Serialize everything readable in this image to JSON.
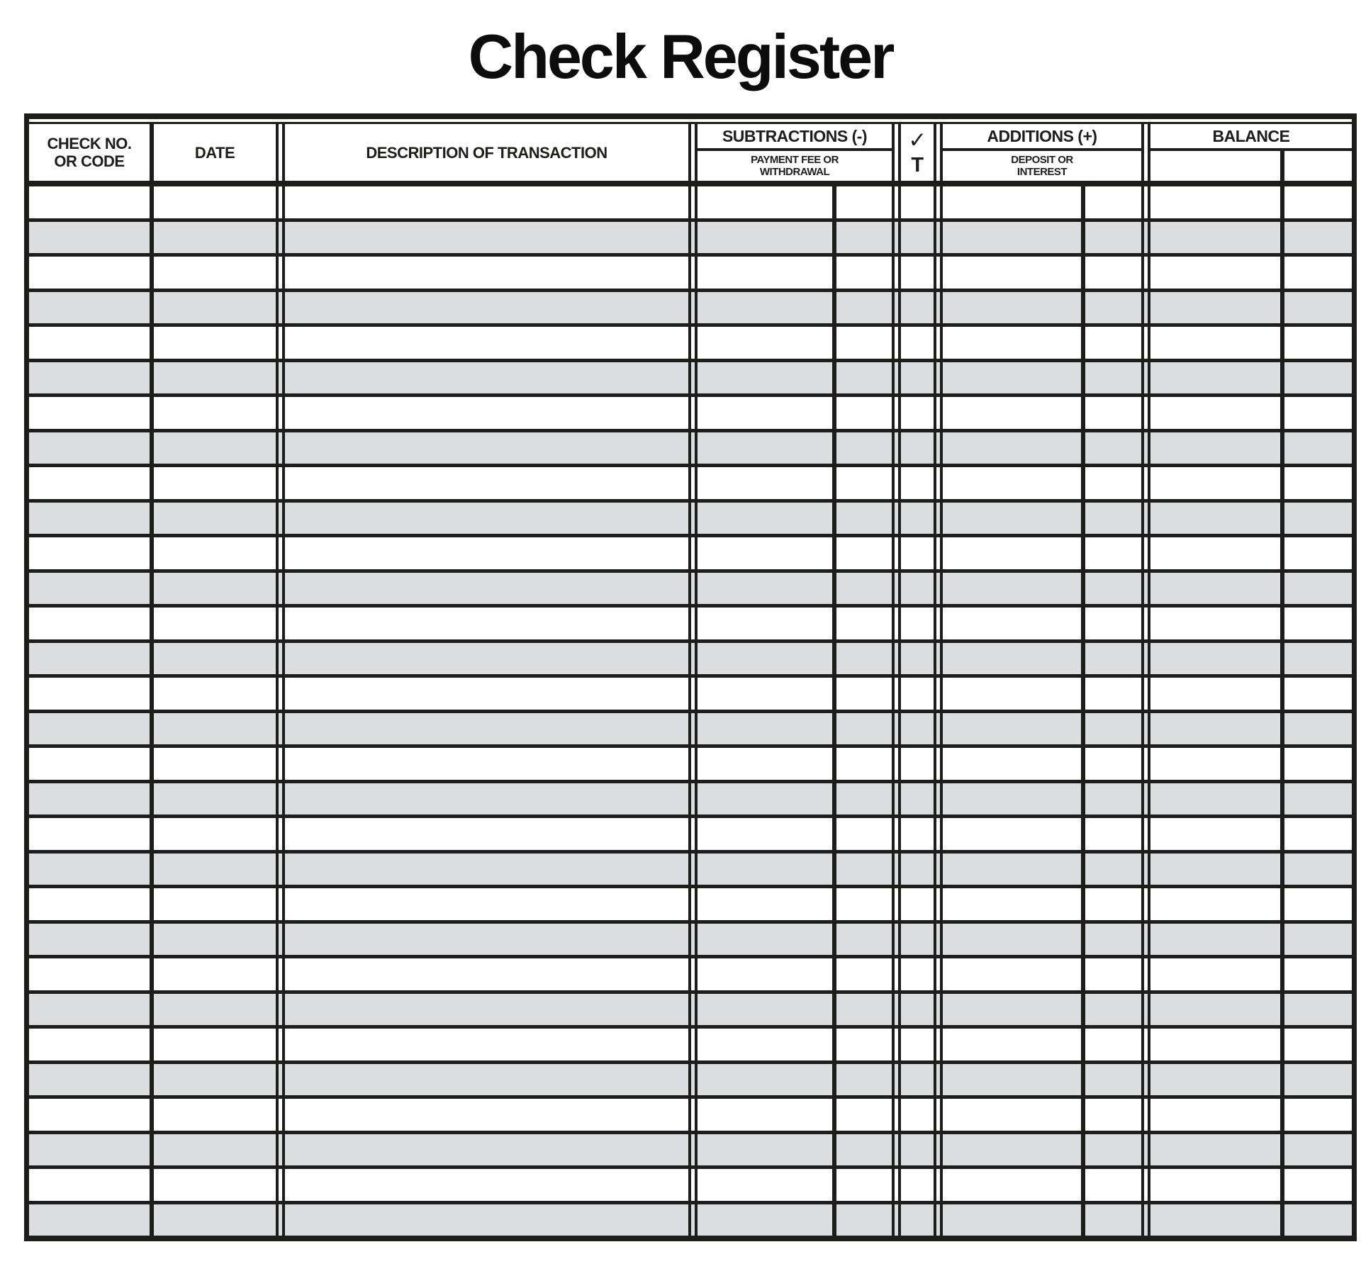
{
  "page": {
    "title": "Check Register"
  },
  "table": {
    "header": {
      "check_no_line1": "CHECK NO.",
      "check_no_line2": "OR CODE",
      "date": "DATE",
      "description": "DESCRIPTION OF TRANSACTION",
      "subtractions": "SUBTRACTIONS (-)",
      "subtractions_sub_line1": "PAYMENT FEE OR",
      "subtractions_sub_line2": "WITHDRAWAL",
      "check_glyph": "✓",
      "check_sub": "T",
      "additions": "ADDITIONS (+)",
      "additions_sub_line1": "DEPOSIT OR",
      "additions_sub_line2": "INTEREST",
      "balance": "BALANCE"
    },
    "body": {
      "row_count": 30
    },
    "colors": {
      "line": "#1d1d1b",
      "row_odd": "#ffffff",
      "row_even": "#dcdddf"
    }
  }
}
